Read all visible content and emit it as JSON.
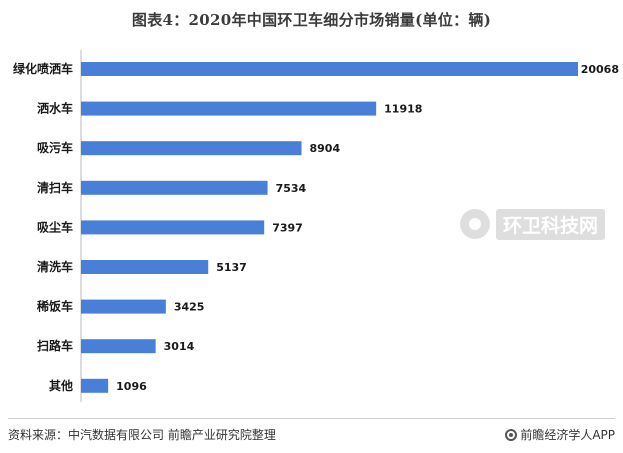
{
  "title": "图表4：2020年中国环卫车细分市场销量(单位：辆)",
  "chart_data": {
    "type": "bar",
    "orientation": "horizontal",
    "categories": [
      "绿化喷洒车",
      "洒水车",
      "吸污车",
      "清扫车",
      "吸尘车",
      "清洗车",
      "稀饭车",
      "扫路车",
      "其他"
    ],
    "values": [
      20068,
      11918,
      8904,
      7534,
      7397,
      5137,
      3425,
      3014,
      1096
    ],
    "xlim": [
      0,
      20068
    ],
    "grid": false,
    "legend": "none",
    "bar_color": "#4a7fd8"
  },
  "footer": {
    "source": "资料来源：中汽数据有限公司 前瞻产业研究院整理",
    "brand": "前瞻经济学人APP"
  },
  "watermark": {
    "text": "环卫科技网"
  }
}
